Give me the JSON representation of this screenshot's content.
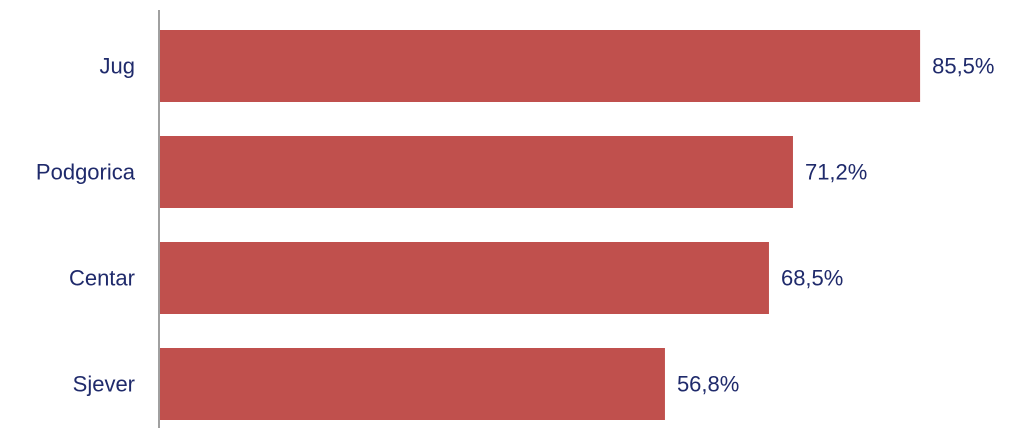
{
  "chart_data": {
    "type": "bar",
    "orientation": "horizontal",
    "categories": [
      "Jug",
      "Podgorica",
      "Centar",
      "Sjever"
    ],
    "values": [
      85.5,
      71.2,
      68.5,
      56.8
    ],
    "value_labels": [
      "85,5%",
      "71,2%",
      "68,5%",
      "56,8%"
    ],
    "unit": "%",
    "xlim": [
      0,
      100
    ],
    "grid": false,
    "legend": "none",
    "title": "",
    "xlabel": "",
    "ylabel": ""
  },
  "colors": {
    "bar": "#c0504d",
    "text": "#1f2a6b",
    "axis": "#808080"
  }
}
